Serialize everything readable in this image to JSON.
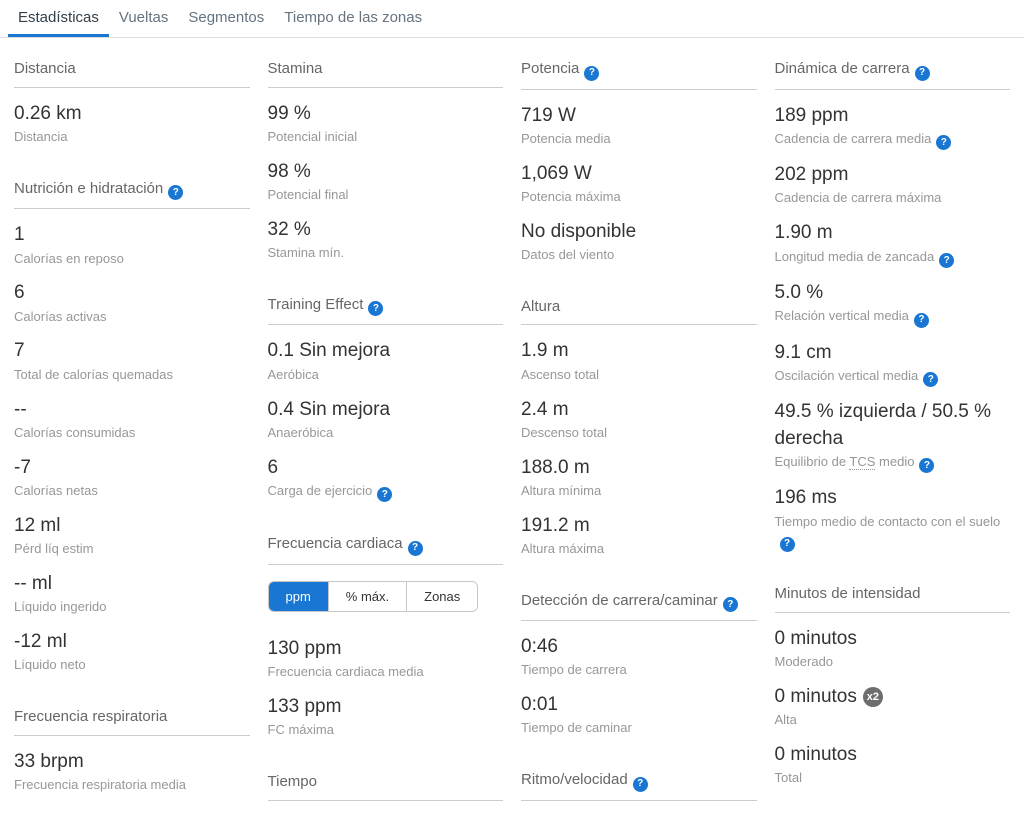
{
  "colors": {
    "accent": "#1976d2",
    "badge_gray": "#6e6e6e"
  },
  "icons": {
    "help_glyph": "?"
  },
  "tabs": [
    {
      "label": "Estadísticas",
      "active": true
    },
    {
      "label": "Vueltas",
      "active": false
    },
    {
      "label": "Segmentos",
      "active": false
    },
    {
      "label": "Tiempo de las zonas",
      "active": false
    }
  ],
  "columns": [
    {
      "sections": [
        {
          "title": "Distancia",
          "help": false,
          "stats": [
            {
              "value": "0.26 km",
              "label": "Distancia"
            }
          ]
        },
        {
          "title": "Nutrición e hidratación",
          "help": true,
          "stats": [
            {
              "value": "1",
              "label": "Calorías en reposo"
            },
            {
              "value": "6",
              "label": "Calorías activas"
            },
            {
              "value": "7",
              "label": "Total de calorías quemadas"
            },
            {
              "value": "--",
              "label": "Calorías consumidas"
            },
            {
              "value": "-7",
              "label": "Calorías netas"
            },
            {
              "value": "12 ml",
              "label": "Pérd líq estim"
            },
            {
              "value": "-- ml",
              "label": "Líquido ingerido"
            },
            {
              "value": "-12 ml",
              "label": "Líquido neto"
            }
          ]
        },
        {
          "title": "Frecuencia respiratoria",
          "help": false,
          "stats": [
            {
              "value": "33 brpm",
              "label": "Frecuencia respiratoria media"
            }
          ]
        }
      ]
    },
    {
      "sections": [
        {
          "title": "Stamina",
          "help": false,
          "stats": [
            {
              "value": "99 %",
              "label": "Potencial inicial"
            },
            {
              "value": "98 %",
              "label": "Potencial final"
            },
            {
              "value": "32 %",
              "label": "Stamina mín."
            }
          ]
        },
        {
          "title": "Training Effect",
          "help": true,
          "stats": [
            {
              "value": "0.1 Sin mejora",
              "label": "Aeróbica"
            },
            {
              "value": "0.4 Sin mejora",
              "label": "Anaeróbica"
            },
            {
              "value": "6",
              "label": "Carga de ejercicio",
              "label_help": true
            }
          ]
        },
        {
          "title": "Frecuencia cardiaca",
          "help": true,
          "toggle": {
            "options": [
              "ppm",
              "% máx.",
              "Zonas"
            ],
            "active": 0
          },
          "stats": [
            {
              "value": "130 ppm",
              "label": "Frecuencia cardiaca media"
            },
            {
              "value": "133 ppm",
              "label": "FC máxima"
            }
          ]
        },
        {
          "title": "Tiempo",
          "help": false,
          "stats": []
        }
      ]
    },
    {
      "sections": [
        {
          "title": "Potencia",
          "help": true,
          "stats": [
            {
              "value": "719 W",
              "label": "Potencia media"
            },
            {
              "value": "1,069 W",
              "label": "Potencia máxima"
            },
            {
              "value": "No disponible",
              "label": "Datos del viento"
            }
          ]
        },
        {
          "title": "Altura",
          "help": false,
          "stats": [
            {
              "value": "1.9 m",
              "label": "Ascenso total"
            },
            {
              "value": "2.4 m",
              "label": "Descenso total"
            },
            {
              "value": "188.0 m",
              "label": "Altura mínima"
            },
            {
              "value": "191.2 m",
              "label": "Altura máxima"
            }
          ]
        },
        {
          "title": "Detección de carrera/caminar",
          "help": true,
          "stats": [
            {
              "value": "0:46",
              "label": "Tiempo de carrera"
            },
            {
              "value": "0:01",
              "label": "Tiempo de caminar"
            }
          ]
        },
        {
          "title": "Ritmo/velocidad",
          "help": true,
          "stats": []
        }
      ]
    },
    {
      "sections": [
        {
          "title": "Dinámica de carrera",
          "help": true,
          "stats": [
            {
              "value": "189 ppm",
              "label": "Cadencia de carrera media",
              "label_help": true
            },
            {
              "value": "202 ppm",
              "label": "Cadencia de carrera máxima"
            },
            {
              "value": "1.90 m",
              "label": "Longitud media de zancada",
              "label_help": true
            },
            {
              "value": "5.0 %",
              "label": "Relación vertical media",
              "label_help": true
            },
            {
              "value": "9.1 cm",
              "label": "Oscilación vertical media",
              "label_help": true
            },
            {
              "value": "49.5 % izquierda / 50.5 % derecha",
              "label": "Equilibrio de TCS medio",
              "label_help": true,
              "abbr": "TCS"
            },
            {
              "value": "196 ms",
              "label": "Tiempo medio de contacto con el suelo",
              "label_help": true
            }
          ]
        },
        {
          "title": "Minutos de intensidad",
          "help": false,
          "stats": [
            {
              "value": "0 minutos",
              "label": "Moderado"
            },
            {
              "value": "0 minutos",
              "label": "Alta",
              "badge": "x2"
            },
            {
              "value": "0 minutos",
              "label": "Total"
            }
          ]
        }
      ]
    }
  ]
}
